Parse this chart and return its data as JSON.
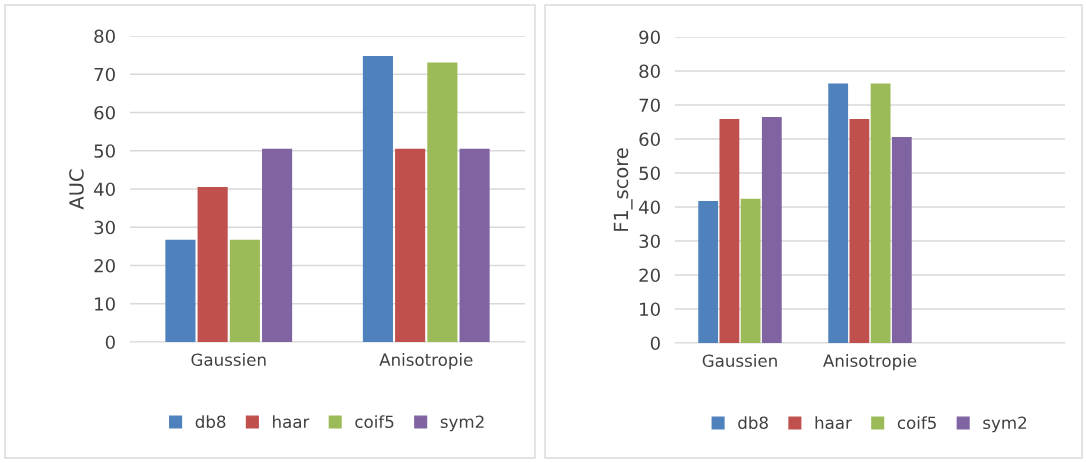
{
  "chart_data": [
    {
      "type": "bar",
      "ylabel": "AUC",
      "categories": [
        "Gaussien",
        "Anisotropie"
      ],
      "ylim": [
        0,
        80
      ],
      "yticks": [
        0,
        10,
        20,
        30,
        40,
        50,
        60,
        70,
        80
      ],
      "grid": "y",
      "legend": "bottom",
      "series": [
        {
          "name": "db8",
          "color": "#4f81bd",
          "values": [
            26.7,
            74.8
          ]
        },
        {
          "name": "haar",
          "color": "#c0504d",
          "values": [
            40.5,
            50.5
          ]
        },
        {
          "name": "coif5",
          "color": "#9bbb59",
          "values": [
            26.7,
            73.1
          ]
        },
        {
          "name": "sym2",
          "color": "#8064a2",
          "values": [
            50.5,
            50.5
          ]
        }
      ]
    },
    {
      "type": "bar",
      "ylabel": "F1_score",
      "categories": [
        "Gaussien",
        "Anisotropie",
        null
      ],
      "ylim": [
        0,
        90
      ],
      "yticks": [
        0,
        10,
        20,
        30,
        40,
        50,
        60,
        70,
        80,
        90
      ],
      "grid": "y",
      "legend": "bottom",
      "series": [
        {
          "name": "db8",
          "color": "#4f81bd",
          "values": [
            41.8,
            76.3,
            null
          ]
        },
        {
          "name": "haar",
          "color": "#c0504d",
          "values": [
            65.9,
            65.9,
            null
          ]
        },
        {
          "name": "coif5",
          "color": "#9bbb59",
          "values": [
            42.4,
            76.3,
            null
          ]
        },
        {
          "name": "sym2",
          "color": "#8064a2",
          "values": [
            66.5,
            60.6,
            null
          ]
        }
      ]
    }
  ]
}
